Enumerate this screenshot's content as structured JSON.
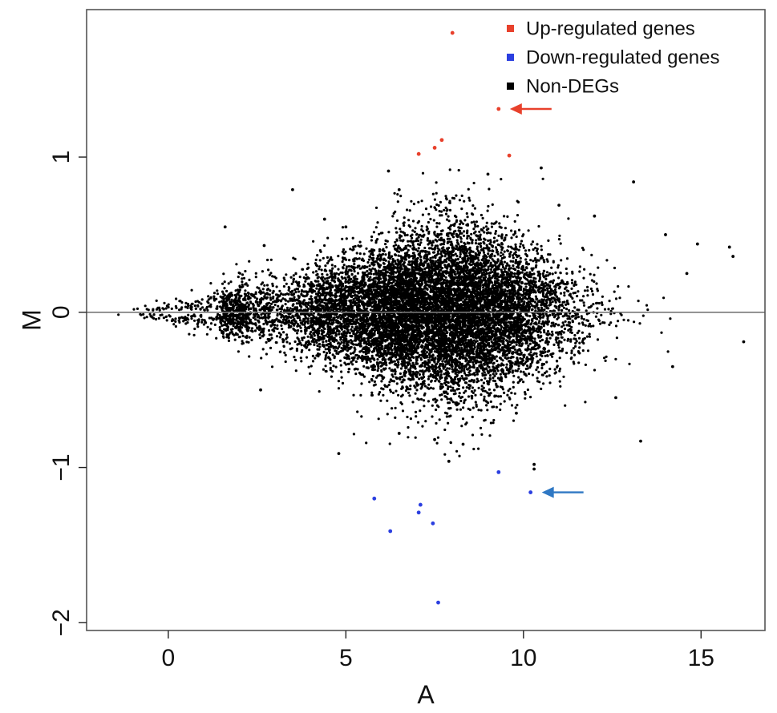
{
  "chart_data": {
    "type": "scatter",
    "title": "",
    "xlabel": "A",
    "ylabel": "M",
    "xlim": [
      -2.3,
      16.8
    ],
    "ylim": [
      -2.05,
      1.95
    ],
    "x_ticks": [
      0,
      5,
      10,
      15
    ],
    "x_tick_labels": [
      "0",
      "5",
      "10",
      "15"
    ],
    "y_ticks": [
      -2,
      -1,
      0,
      1
    ],
    "y_tick_labels": [
      "−2",
      "−1",
      "0",
      "1"
    ],
    "reference_line_y": 0,
    "grid": false,
    "legend_position": "top-right",
    "legend": [
      {
        "label": "Up-regulated genes",
        "color": "#e8412c"
      },
      {
        "label": "Down-regulated genes",
        "color": "#2b3fe0"
      },
      {
        "label": "Non-DEGs",
        "color": "#000000"
      }
    ],
    "series": [
      {
        "name": "Up-regulated genes",
        "color": "#e8412c",
        "x": [
          8.0,
          9.3,
          7.5,
          7.7,
          7.05,
          9.6
        ],
        "y": [
          1.8,
          1.31,
          1.06,
          1.11,
          1.02,
          1.01
        ]
      },
      {
        "name": "Down-regulated genes",
        "color": "#2b3fe0",
        "x": [
          9.3,
          10.2,
          5.8,
          7.1,
          7.05,
          7.45,
          6.25,
          7.6
        ],
        "y": [
          -1.03,
          -1.16,
          -1.2,
          -1.24,
          -1.29,
          -1.36,
          -1.41,
          -1.87
        ]
      },
      {
        "name": "Non-DEGs",
        "color": "#000000",
        "x": [
          6.2,
          9.0,
          10.5,
          13.1,
          3.5,
          1.6,
          15.8,
          15.9,
          16.2,
          14.9,
          4.8,
          10.3,
          10.3,
          13.3,
          8.3,
          7.9,
          9.8,
          11.0,
          12.0,
          6.5,
          5.0,
          4.4,
          2.6,
          14.0,
          12.6,
          14.2,
          14.6,
          2.7,
          6.5,
          7.5
        ],
        "y": [
          0.91,
          0.89,
          0.93,
          0.84,
          0.79,
          0.55,
          0.42,
          0.36,
          -0.19,
          0.44,
          -0.91,
          -0.98,
          -1.01,
          -0.83,
          -0.85,
          -0.96,
          -0.65,
          0.69,
          0.62,
          0.79,
          0.55,
          0.6,
          -0.5,
          0.5,
          -0.55,
          -0.35,
          0.25,
          0.43,
          -0.78,
          -0.82
        ],
        "note": "about 12,000 additional points forming a dense cloud centred near A = 8, M = 0 and funnelling into a narrow band towards A = -1"
      }
    ],
    "annotations": [
      {
        "type": "arrow",
        "color": "#e8412c",
        "points_to": "Up-regulated genes",
        "x": 9.3,
        "y": 1.31
      },
      {
        "type": "arrow",
        "color": "#2f78c4",
        "points_to": "Down-regulated genes",
        "x": 10.2,
        "y": -1.16
      }
    ]
  }
}
